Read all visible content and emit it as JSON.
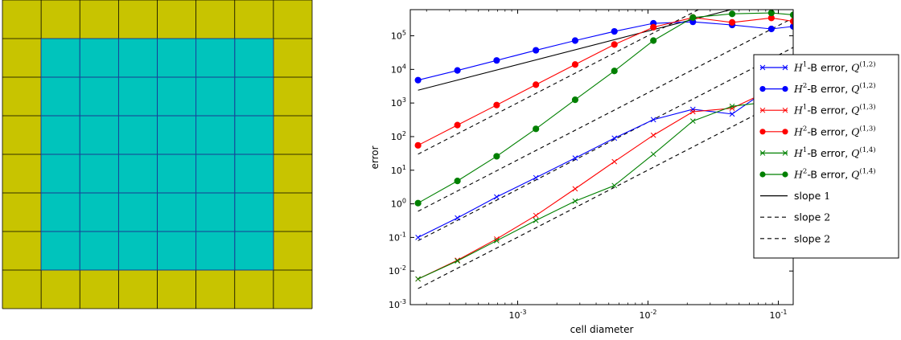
{
  "mesh_panel": {
    "grid_rows": 8,
    "grid_cols": 8,
    "outer_color": "#c8c400",
    "inner_color": "#00c4bc",
    "line_color": "#000000",
    "inner_line_color": "#1f3fb5",
    "inner_region_cells": {
      "col_start": 1,
      "col_end": 6,
      "row_start": 1,
      "row_end": 6
    }
  },
  "chart_data": {
    "type": "line",
    "xlabel": "cell diameter",
    "ylabel": "error",
    "xscale": "log",
    "yscale": "log",
    "xlim": [
      0.00015,
      0.13
    ],
    "ylim": [
      0.001,
      600000
    ],
    "x_ticks": [
      {
        "value": 0.001,
        "base": "10",
        "exp": "-3"
      },
      {
        "value": 0.01,
        "base": "10",
        "exp": "-2"
      },
      {
        "value": 0.1,
        "base": "10",
        "exp": "-1"
      }
    ],
    "y_ticks": [
      {
        "value": 0.001,
        "base": "10",
        "exp": "-3"
      },
      {
        "value": 0.01,
        "base": "10",
        "exp": "-2"
      },
      {
        "value": 0.1,
        "base": "10",
        "exp": "-1"
      },
      {
        "value": 1,
        "base": "10",
        "exp": "0"
      },
      {
        "value": 10,
        "base": "10",
        "exp": "1"
      },
      {
        "value": 100,
        "base": "10",
        "exp": "2"
      },
      {
        "value": 1000,
        "base": "10",
        "exp": "3"
      },
      {
        "value": 10000,
        "base": "10",
        "exp": "4"
      },
      {
        "value": 100000,
        "base": "10",
        "exp": "5"
      }
    ],
    "x": [
      0.000172,
      0.000345,
      0.00069,
      0.00138,
      0.00276,
      0.00552,
      0.011,
      0.0221,
      0.0442,
      0.0884,
      0.13
    ],
    "series": [
      {
        "name": "H¹-B error, Q^(1,2)",
        "color": "#0000ff",
        "marker": "x",
        "values": [
          0.1,
          0.38,
          1.6,
          6,
          23,
          90,
          320,
          650,
          470,
          3000,
          4000
        ]
      },
      {
        "name": "H²-B error, Q^(1,2)",
        "color": "#0000ff",
        "marker": "o",
        "values": [
          4800,
          9300,
          18500,
          37000,
          72000,
          135000,
          235000,
          260000,
          210000,
          160000,
          190000
        ]
      },
      {
        "name": "H¹-B error, Q^(1,3)",
        "color": "#ff0000",
        "marker": "x",
        "values": [
          0.0058,
          0.021,
          0.09,
          0.45,
          2.8,
          18,
          110,
          550,
          700,
          2500,
          3000
        ]
      },
      {
        "name": "H²-B error, Q^(1,3)",
        "color": "#ff0000",
        "marker": "o",
        "values": [
          55,
          220,
          870,
          3500,
          14000,
          55000,
          180000,
          350000,
          250000,
          340000,
          270000
        ]
      },
      {
        "name": "H¹-B error, Q^(1,4)",
        "color": "#008000",
        "marker": "x",
        "values": [
          0.0058,
          0.02,
          0.08,
          0.32,
          1.2,
          3.5,
          30,
          290,
          800,
          1100,
          1400
        ]
      },
      {
        "name": "H²-B error, Q^(1,4)",
        "color": "#008000",
        "marker": "o",
        "values": [
          1.05,
          4.8,
          26,
          170,
          1250,
          9000,
          72000,
          350000,
          450000,
          480000,
          420000
        ]
      }
    ],
    "reference_lines": [
      {
        "name": "slope 1",
        "style": "solid",
        "x": [
          0.000172,
          0.13
        ],
        "y": [
          2400,
          1800000
        ]
      },
      {
        "name": "slope 2",
        "style": "dashed",
        "x": [
          0.000172,
          0.13
        ],
        "y": [
          30,
          17000000
        ]
      },
      {
        "name": "slope 2",
        "style": "dashed",
        "x": [
          0.000172,
          0.13
        ],
        "y": [
          0.6,
          340000
        ]
      },
      {
        "name": "",
        "style": "dashed",
        "x": [
          0.000172,
          0.13
        ],
        "y": [
          0.08,
          45000
        ]
      },
      {
        "name": "",
        "style": "dashed",
        "x": [
          0.000172,
          0.13
        ],
        "y": [
          0.003,
          1700
        ]
      }
    ],
    "legend": {
      "placement": "right",
      "entries": [
        {
          "marker": "x",
          "color": "#0000ff",
          "line": "solid",
          "prefix": "H",
          "sup1": "1",
          "mid": "-B error, ",
          "q": "Q",
          "qsup": "(1,2)"
        },
        {
          "marker": "o",
          "color": "#0000ff",
          "line": "solid",
          "prefix": "H",
          "sup1": "2",
          "mid": "-B error, ",
          "q": "Q",
          "qsup": "(1,2)"
        },
        {
          "marker": "x",
          "color": "#ff0000",
          "line": "solid",
          "prefix": "H",
          "sup1": "1",
          "mid": "-B error, ",
          "q": "Q",
          "qsup": "(1,3)"
        },
        {
          "marker": "o",
          "color": "#ff0000",
          "line": "solid",
          "prefix": "H",
          "sup1": "2",
          "mid": "-B error, ",
          "q": "Q",
          "qsup": "(1,3)"
        },
        {
          "marker": "x",
          "color": "#008000",
          "line": "solid",
          "prefix": "H",
          "sup1": "1",
          "mid": "-B error, ",
          "q": "Q",
          "qsup": "(1,4)"
        },
        {
          "marker": "o",
          "color": "#008000",
          "line": "solid",
          "prefix": "H",
          "sup1": "2",
          "mid": "-B error, ",
          "q": "Q",
          "qsup": "(1,4)"
        },
        {
          "marker": "none",
          "color": "#000000",
          "line": "solid",
          "plain": "slope ",
          "num": "1"
        },
        {
          "marker": "none",
          "color": "#000000",
          "line": "dashed",
          "plain": "slope ",
          "num": "2"
        },
        {
          "marker": "none",
          "color": "#000000",
          "line": "dashed",
          "plain": "slope ",
          "num": "2"
        }
      ]
    }
  }
}
